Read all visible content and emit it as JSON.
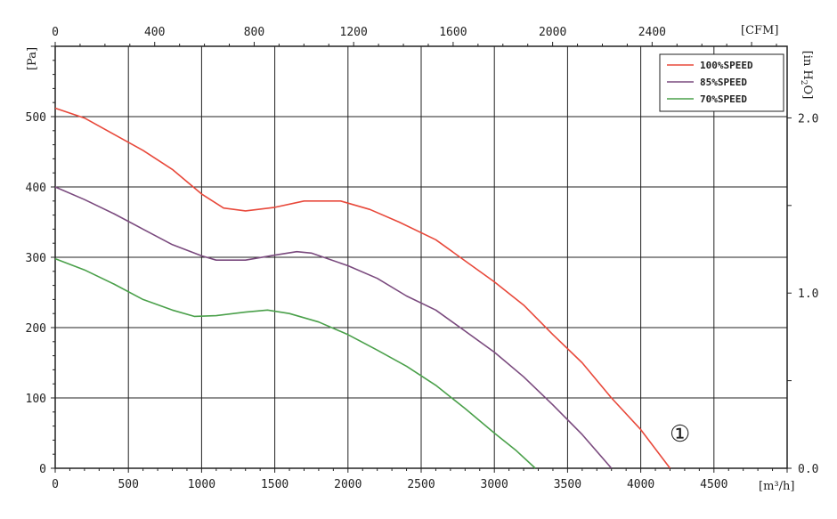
{
  "chart_data": {
    "type": "line",
    "xlabel": "[m³/h]",
    "ylabel": "[Pa]",
    "top_axis_label": "[CFM]",
    "right_axis_label_main": "[in H",
    "right_axis_label_sub": "2",
    "right_axis_label_end": "O]",
    "xlim": [
      0,
      5000
    ],
    "ylim": [
      0,
      600
    ],
    "x_ticks": [
      0,
      500,
      1000,
      1500,
      2000,
      2500,
      3000,
      3500,
      4000,
      4500
    ],
    "x_tick_labels": [
      "0",
      "500",
      "1000",
      "1500",
      "2000",
      "2500",
      "3000",
      "3500",
      "4000",
      "4500"
    ],
    "y_ticks": [
      0,
      100,
      200,
      300,
      400,
      500
    ],
    "y_tick_labels": [
      "0",
      "100",
      "200",
      "300",
      "400",
      "500"
    ],
    "top_ticks": [
      0,
      400,
      800,
      1200,
      1600,
      2000,
      2400
    ],
    "top_tick_labels": [
      "0",
      "400",
      "800",
      "1200",
      "1600",
      "2000",
      "2400"
    ],
    "right_ticks": [
      0,
      1.0,
      2.0
    ],
    "right_tick_labels": [
      "0.0",
      "1.0",
      "2.0"
    ],
    "grid": true,
    "legend_position": "top-right",
    "annotation": "①",
    "series": [
      {
        "name": "100%SPEED",
        "color": "#e8483a",
        "points": [
          [
            0,
            512
          ],
          [
            200,
            498
          ],
          [
            400,
            475
          ],
          [
            600,
            452
          ],
          [
            800,
            425
          ],
          [
            1000,
            390
          ],
          [
            1150,
            370
          ],
          [
            1300,
            366
          ],
          [
            1500,
            371
          ],
          [
            1700,
            380
          ],
          [
            1950,
            380
          ],
          [
            2150,
            368
          ],
          [
            2350,
            350
          ],
          [
            2600,
            325
          ],
          [
            2800,
            295
          ],
          [
            3000,
            265
          ],
          [
            3200,
            232
          ],
          [
            3400,
            190
          ],
          [
            3600,
            150
          ],
          [
            3800,
            100
          ],
          [
            4000,
            55
          ],
          [
            4200,
            0
          ]
        ]
      },
      {
        "name": "85%SPEED",
        "color": "#7a4a7e",
        "points": [
          [
            0,
            400
          ],
          [
            200,
            382
          ],
          [
            400,
            362
          ],
          [
            600,
            340
          ],
          [
            800,
            318
          ],
          [
            1000,
            302
          ],
          [
            1100,
            296
          ],
          [
            1300,
            296
          ],
          [
            1500,
            303
          ],
          [
            1650,
            308
          ],
          [
            1750,
            306
          ],
          [
            2000,
            288
          ],
          [
            2200,
            270
          ],
          [
            2400,
            245
          ],
          [
            2600,
            225
          ],
          [
            2800,
            195
          ],
          [
            3000,
            165
          ],
          [
            3200,
            130
          ],
          [
            3400,
            90
          ],
          [
            3600,
            48
          ],
          [
            3800,
            0
          ]
        ]
      },
      {
        "name": "70%SPEED",
        "color": "#4aa04a",
        "points": [
          [
            0,
            298
          ],
          [
            200,
            282
          ],
          [
            400,
            262
          ],
          [
            600,
            240
          ],
          [
            800,
            225
          ],
          [
            950,
            216
          ],
          [
            1100,
            217
          ],
          [
            1300,
            222
          ],
          [
            1450,
            225
          ],
          [
            1600,
            220
          ],
          [
            1800,
            208
          ],
          [
            2000,
            190
          ],
          [
            2200,
            168
          ],
          [
            2400,
            145
          ],
          [
            2600,
            118
          ],
          [
            2800,
            85
          ],
          [
            3000,
            50
          ],
          [
            3150,
            25
          ],
          [
            3280,
            0
          ]
        ]
      }
    ]
  }
}
